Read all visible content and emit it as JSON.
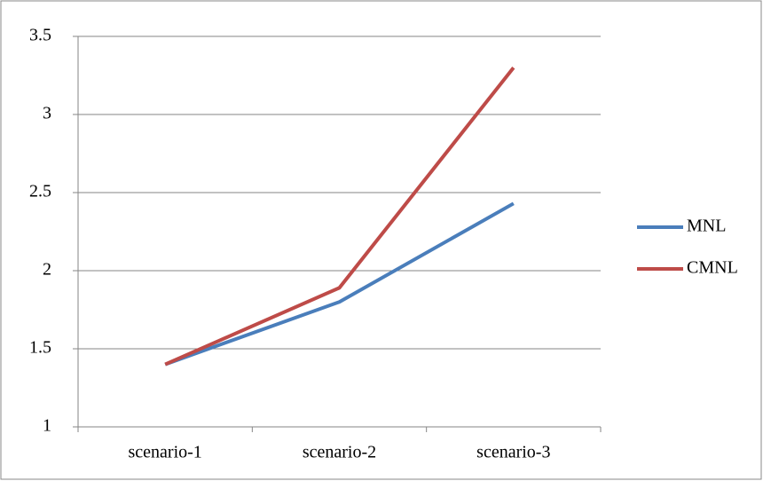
{
  "chart_data": {
    "type": "line",
    "categories": [
      "scenario-1",
      "scenario-2",
      "scenario-3"
    ],
    "series": [
      {
        "name": "MNL",
        "color": "#4a7ebb",
        "values": [
          1.4,
          1.8,
          2.43
        ]
      },
      {
        "name": "CMNL",
        "color": "#be4b48",
        "values": [
          1.4,
          1.89,
          3.3
        ]
      }
    ],
    "ylim": [
      1,
      3.5
    ],
    "yticks": [
      1,
      1.5,
      2,
      2.5,
      3,
      3.5
    ],
    "grid": true,
    "legend": "right"
  }
}
